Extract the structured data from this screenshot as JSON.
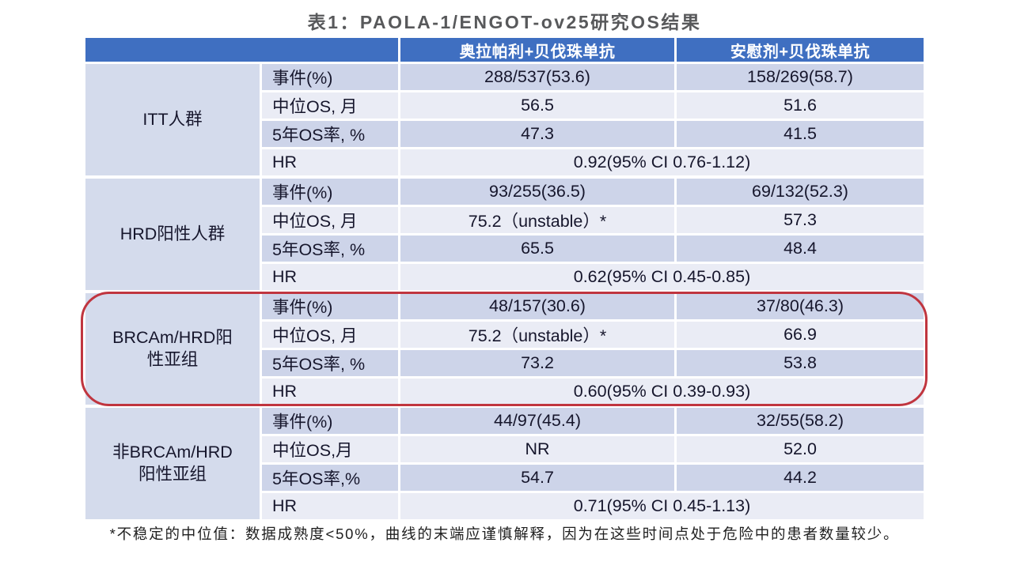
{
  "title": "表1：PAOLA-1/ENGOT-ov25研究OS结果",
  "table": {
    "columns": [
      "奥拉帕利+贝伐珠单抗",
      "安慰剂+贝伐珠单抗"
    ],
    "groups": [
      {
        "name": "ITT人群",
        "rows": [
          {
            "label": "事件(%)",
            "v1": "288/537(53.6)",
            "v2": "158/269(58.7)"
          },
          {
            "label": "中位OS, 月",
            "v1": "56.5",
            "v2": "51.6"
          },
          {
            "label": "5年OS率, %",
            "v1": "47.3",
            "v2": "41.5"
          },
          {
            "label": "HR",
            "span": "0.92(95% CI 0.76-1.12)"
          }
        ]
      },
      {
        "name": "HRD阳性人群",
        "rows": [
          {
            "label": "事件(%)",
            "v1": "93/255(36.5)",
            "v2": "69/132(52.3)"
          },
          {
            "label": "中位OS, 月",
            "v1": "75.2（unstable）*",
            "v2": "57.3"
          },
          {
            "label": "5年OS率, %",
            "v1": "65.5",
            "v2": "48.4"
          },
          {
            "label": "HR",
            "span": "0.62(95% CI 0.45-0.85)"
          }
        ]
      },
      {
        "name": "BRCAm/HRD阳性亚组",
        "highlighted": true,
        "rows": [
          {
            "label": "事件(%)",
            "v1": "48/157(30.6)",
            "v2": "37/80(46.3)"
          },
          {
            "label": "中位OS, 月",
            "v1": "75.2（unstable）*",
            "v2": "66.9"
          },
          {
            "label": "5年OS率, %",
            "v1": "73.2",
            "v2": "53.8"
          },
          {
            "label": "HR",
            "span": "0.60(95% CI 0.39-0.93)"
          }
        ]
      },
      {
        "name": "非BRCAm/HRD阳性亚组",
        "rows": [
          {
            "label": "事件(%)",
            "v1": "44/97(45.4)",
            "v2": "32/55(58.2)"
          },
          {
            "label": "中位OS,月",
            "v1": "NR",
            "v2": "52.0"
          },
          {
            "label": "5年OS率,%",
            "v1": "54.7",
            "v2": "44.2"
          },
          {
            "label": "HR",
            "span": "0.71(95% CI 0.45-1.13)"
          }
        ]
      }
    ]
  },
  "footnote": "*不稳定的中位值：数据成熟度<50%，曲线的末端应谨慎解释，因为在这些时间点处于危险中的患者数量较少。",
  "colors": {
    "header_bg": "#3f6fc1",
    "band_dark": "#cdd4e9",
    "band_light": "#eaecf5",
    "group_col_bg": "#d4dbec",
    "highlight_border": "#c0353f",
    "title_text": "#58595b"
  }
}
